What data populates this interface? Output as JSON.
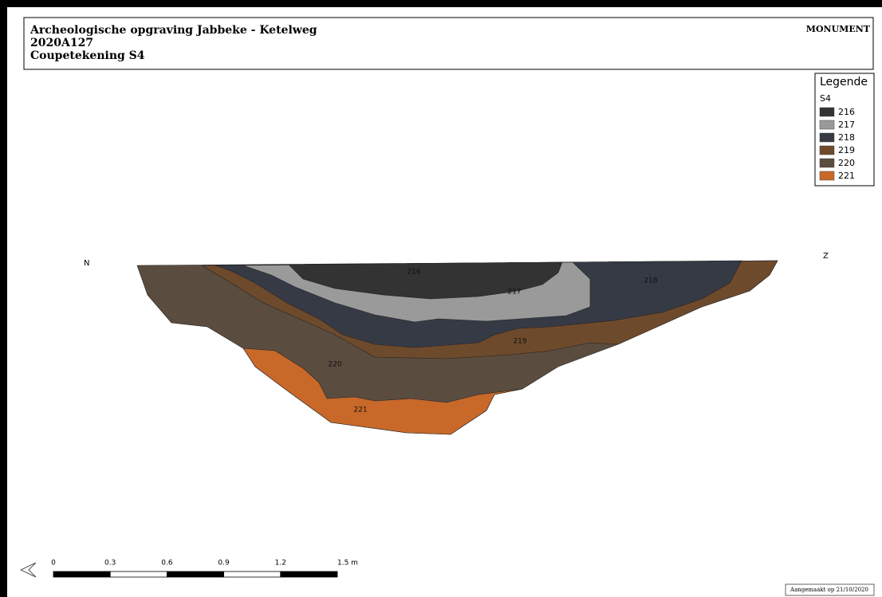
{
  "header": {
    "lines": [
      "Archeologische opgraving Jabbeke - Ketelweg",
      "2020A127",
      "Coupetekening S4"
    ],
    "logo": "MONUMENT"
  },
  "legend": {
    "title": "Legende",
    "group": "S4"
  },
  "layers": [
    {
      "label": "216",
      "color": "#333333"
    },
    {
      "label": "217",
      "color": "#9a9a9a"
    },
    {
      "label": "218",
      "color": "#363a45"
    },
    {
      "label": "219",
      "color": "#6e4a2c"
    },
    {
      "label": "220",
      "color": "#5b4c40"
    },
    {
      "label": "221",
      "color": "#c8692a"
    }
  ],
  "orientation": {
    "left": "N",
    "right": "Z"
  },
  "scale": {
    "ticks": [
      "0",
      "0.3",
      "0.6",
      "0.9",
      "1.2",
      "1.5 m"
    ]
  },
  "footer": "Aangemaakt op 21/10/2020"
}
